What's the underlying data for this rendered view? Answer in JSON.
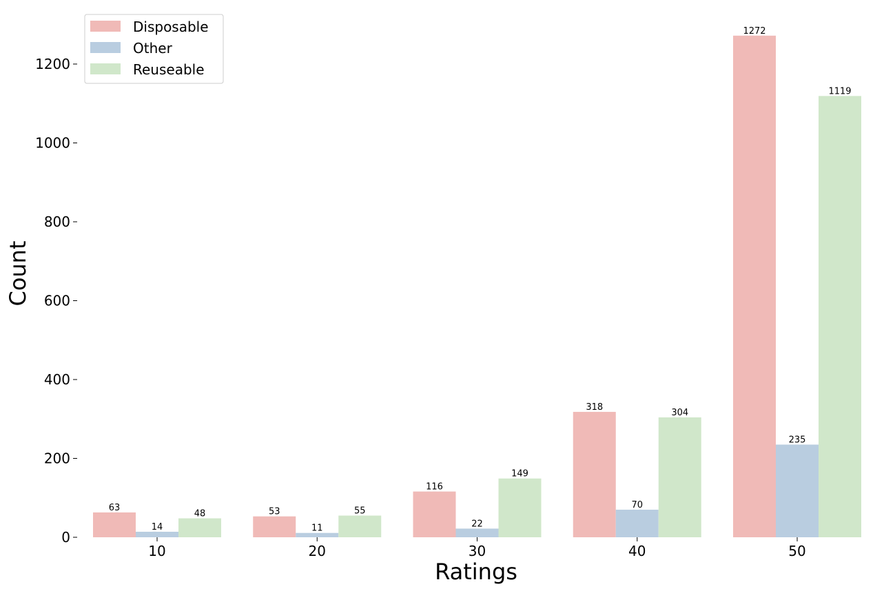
{
  "chart_data": {
    "type": "bar",
    "title": "",
    "xlabel": "Ratings",
    "ylabel": "Count",
    "categories": [
      "10",
      "20",
      "30",
      "40",
      "50"
    ],
    "series": [
      {
        "name": "Disposable",
        "color": "#f0bab7",
        "values": [
          63,
          53,
          116,
          318,
          1272
        ]
      },
      {
        "name": "Other",
        "color": "#b9cde0",
        "values": [
          14,
          11,
          22,
          70,
          235
        ]
      },
      {
        "name": "Reuseable",
        "color": "#d0e7ca",
        "values": [
          48,
          55,
          149,
          304,
          1119
        ]
      }
    ],
    "ylim": [
      0,
      1310
    ],
    "yticks": [
      0,
      200,
      400,
      600,
      800,
      1000,
      1200
    ],
    "grid": false,
    "legend_position": "top-left",
    "data_labels": true
  }
}
